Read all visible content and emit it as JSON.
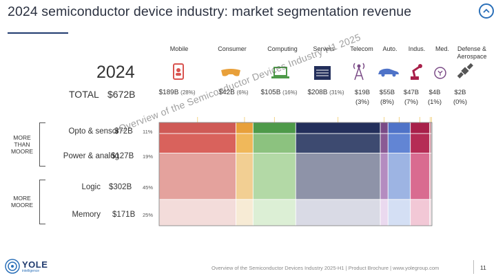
{
  "header": {
    "title": "2024 semiconductor device industry: market segmentation revenue"
  },
  "summary": {
    "year": "2024",
    "total_label": "TOTAL",
    "total_value": "$672B"
  },
  "segments": [
    {
      "name": "Mobile",
      "value": "$189B",
      "pct": "(28%)",
      "icon": "smartphone-icon"
    },
    {
      "name": "Consumer",
      "value": "$42B",
      "pct": "(6%)",
      "icon": "vr-headset-icon"
    },
    {
      "name": "Computing",
      "value": "$105B",
      "pct": "(16%)",
      "icon": "laptop-icon"
    },
    {
      "name": "Servers",
      "value": "$208B",
      "pct": "(31%)",
      "icon": "server-rack-icon"
    },
    {
      "name": "Telecom",
      "value": "$19B",
      "pct": "(3%)",
      "icon": "antenna-tower-icon"
    },
    {
      "name": "Auto.",
      "value": "$55B",
      "pct": "(8%)",
      "icon": "car-icon"
    },
    {
      "name": "Indus.",
      "value": "$47B",
      "pct": "(7%)",
      "icon": "robot-arm-icon"
    },
    {
      "name": "Med.",
      "value": "$4B",
      "pct": "(1%)",
      "icon": "medical-icon"
    },
    {
      "name": "Defense & Aerospace",
      "value": "$2B",
      "pct": "(0%)",
      "icon": "satellite-icon"
    }
  ],
  "rows": [
    {
      "name": "Opto & sensor",
      "value": "$72B",
      "pct": "11%"
    },
    {
      "name": "Power & analog",
      "value": "$127B",
      "pct": "19%"
    },
    {
      "name": "Logic",
      "value": "$302B",
      "pct": "45%"
    },
    {
      "name": "Memory",
      "value": "$171B",
      "pct": "25%"
    }
  ],
  "groups": {
    "more_than_moore": "MORE THAN MOORE",
    "more_moore": "MORE MOORE"
  },
  "watermark": "Overview of the Semiconductor Devices Industry H1 2025",
  "footer": {
    "text": "Overview of the Semiconductor Devices Industry 2025-H1 | Product Brochure | www.yolegroup.com",
    "page": "11"
  },
  "logo": {
    "name": "YOLE",
    "sub": "intelligence"
  },
  "chart_data": {
    "type": "mosaic",
    "title": "2024 semiconductor device industry: market segmentation revenue",
    "total": 672,
    "unit": "$B",
    "columns": [
      "Mobile",
      "Consumer",
      "Computing",
      "Servers",
      "Telecom",
      "Auto.",
      "Indus.",
      "Med.",
      "Defense & Aerospace"
    ],
    "column_values": [
      189,
      42,
      105,
      208,
      19,
      55,
      47,
      4,
      2
    ],
    "column_pct": [
      28,
      6,
      16,
      31,
      3,
      8,
      7,
      1,
      0
    ],
    "rows": [
      "Opto & sensor",
      "Power & analog",
      "Logic",
      "Memory"
    ],
    "row_values": [
      72,
      127,
      302,
      171
    ],
    "row_pct": [
      11,
      19,
      45,
      25
    ],
    "colors": {
      "Mobile": [
        "#cf5a56",
        "#d9625c",
        "#e4a29d",
        "#f3dcda"
      ],
      "Consumer": [
        "#e8a03a",
        "#f0b85a",
        "#f2cf93",
        "#f7ebd5"
      ],
      "Computing": [
        "#4e9a49",
        "#8cc27f",
        "#b3d9a6",
        "#dcefd5"
      ],
      "Servers": [
        "#232f5b",
        "#3d4a70",
        "#8e93a8",
        "#d9dae5"
      ],
      "Telecom": [
        "#7a4a86",
        "#8a5a94",
        "#b48cc0",
        "#ead9ef"
      ],
      "Auto.": [
        "#4f73c8",
        "#6285d4",
        "#9db4e3",
        "#d4dff4"
      ],
      "Indus.": [
        "#a8204a",
        "#b52c55",
        "#d96b90",
        "#f2c8d6"
      ],
      "Med.": [
        "#c06e7a",
        "#c98090",
        "#d8a5b0",
        "#eed5da"
      ],
      "Defense & Aerospace": [
        "#777777",
        "#888888",
        "#a8a8a8",
        "#d5d5d5"
      ]
    }
  }
}
